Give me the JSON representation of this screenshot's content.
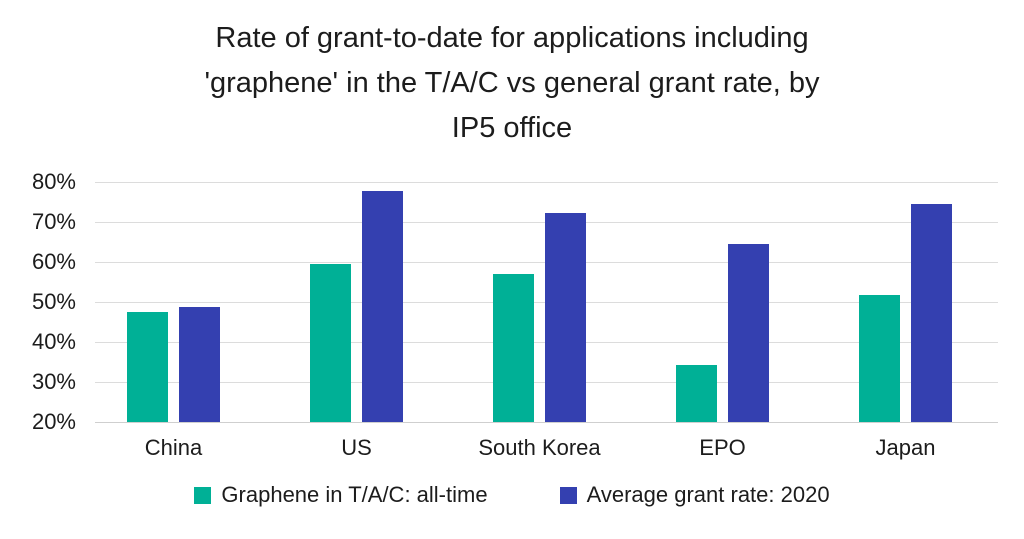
{
  "chart_data": {
    "type": "bar",
    "title": "Rate of grant-to-date for applications including 'graphene' in the T/A/C vs general grant rate, by IP5 office",
    "title_lines": [
      "Rate of grant-to-date for applications including",
      "'graphene' in the T/A/C vs general grant rate, by",
      "IP5 office"
    ],
    "categories": [
      "China",
      "US",
      "South Korea",
      "EPO",
      "Japan"
    ],
    "series": [
      {
        "name": "Graphene in T/A/C: all-time",
        "color": "#00B096",
        "values": [
          47.5,
          59.4,
          56.9,
          34.3,
          51.7
        ]
      },
      {
        "name": "Average grant rate: 2020",
        "color": "#3440B0",
        "values": [
          48.8,
          77.8,
          72.3,
          64.5,
          74.5
        ]
      }
    ],
    "xlabel": "",
    "ylabel": "",
    "y_ticks": [
      "80%",
      "70%",
      "60%",
      "50%",
      "40%",
      "30%",
      "20%"
    ],
    "ylim": [
      20,
      80
    ],
    "grid": "horizontal",
    "legend_position": "bottom",
    "text_color": "#1c1c1c",
    "gridline_color": "#dcdcdc",
    "background_color": "#ffffff"
  }
}
